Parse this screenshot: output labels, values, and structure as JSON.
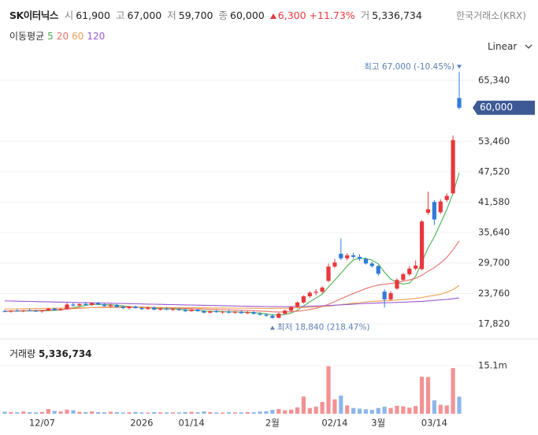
{
  "chart_data": {
    "type": "candlestick",
    "title": "SK이터닉스",
    "subtitle": "한국거래소(KRX)",
    "quote": [
      {
        "label": "시",
        "value": "61,900"
      },
      {
        "label": "고",
        "value": "67,000"
      },
      {
        "label": "저",
        "value": "59,700"
      },
      {
        "label": "종",
        "value": "60,000"
      }
    ],
    "change": {
      "amount": "6,300",
      "pct": "+11.73%"
    },
    "turnover": {
      "label": "거",
      "value": "5,336,734"
    },
    "ma_label": "이동평균",
    "scale_label": "Linear",
    "up_color": "#e8383d",
    "down_color": "#2f7bd9",
    "categories": [
      null,
      null,
      null,
      null,
      null,
      null,
      "12/07",
      null,
      null,
      null,
      null,
      null,
      null,
      null,
      null,
      null,
      null,
      null,
      null,
      null,
      null,
      null,
      "2026",
      null,
      null,
      null,
      null,
      null,
      null,
      null,
      "01/14",
      null,
      null,
      null,
      null,
      null,
      null,
      null,
      null,
      null,
      null,
      null,
      null,
      "2월",
      null,
      null,
      null,
      null,
      null,
      null,
      null,
      null,
      null,
      "02/14",
      null,
      null,
      null,
      null,
      null,
      null,
      "3월",
      null,
      null,
      null,
      null,
      null,
      null,
      null,
      null,
      "03/14",
      null,
      null,
      null,
      null
    ],
    "candles": [
      [
        20300,
        20600,
        20100,
        20200
      ],
      [
        20200,
        20500,
        20000,
        20400
      ],
      [
        20400,
        20700,
        20200,
        20300
      ],
      [
        20300,
        20500,
        20100,
        20450
      ],
      [
        20450,
        20800,
        20300,
        20350
      ],
      [
        20350,
        20600,
        20150,
        20250
      ],
      [
        20250,
        20500,
        20000,
        20400
      ],
      [
        20400,
        20900,
        20300,
        20800
      ],
      [
        20800,
        21000,
        20400,
        20500
      ],
      [
        20500,
        20900,
        20350,
        20700
      ],
      [
        20700,
        21900,
        20600,
        21600
      ],
      [
        21600,
        21900,
        21200,
        21400
      ],
      [
        21400,
        21800,
        21100,
        21700
      ],
      [
        21700,
        22100,
        21400,
        21500
      ],
      [
        21500,
        22000,
        21300,
        21900
      ],
      [
        21900,
        22100,
        21500,
        21600
      ],
      [
        21600,
        21900,
        21200,
        21300
      ],
      [
        21300,
        21700,
        21000,
        21500
      ],
      [
        21500,
        21700,
        21000,
        21100
      ],
      [
        21100,
        21400,
        20700,
        20900
      ],
      [
        20900,
        21300,
        20600,
        21200
      ],
      [
        21200,
        21400,
        20800,
        20900
      ],
      [
        20900,
        21100,
        20500,
        20700
      ],
      [
        20700,
        21200,
        20600,
        21000
      ],
      [
        21000,
        21200,
        20500,
        20600
      ],
      [
        20600,
        21000,
        20400,
        20800
      ],
      [
        20800,
        21100,
        20500,
        20600
      ],
      [
        20600,
        20900,
        20300,
        20700
      ],
      [
        20700,
        21000,
        20400,
        20500
      ],
      [
        20500,
        20800,
        20100,
        20300
      ],
      [
        20300,
        20700,
        20200,
        20600
      ],
      [
        20600,
        20800,
        20200,
        20300
      ],
      [
        20300,
        20500,
        19900,
        20000
      ],
      [
        20000,
        20400,
        19900,
        20300
      ],
      [
        20300,
        20600,
        20000,
        20100
      ],
      [
        20100,
        20400,
        19800,
        20200
      ],
      [
        20200,
        20500,
        19900,
        20000
      ],
      [
        20000,
        20300,
        19800,
        20200
      ],
      [
        20200,
        20400,
        19800,
        19900
      ],
      [
        19900,
        20300,
        19700,
        20100
      ],
      [
        20100,
        20300,
        19600,
        19800
      ],
      [
        19800,
        20100,
        19400,
        19600
      ],
      [
        19600,
        19900,
        19200,
        19400
      ],
      [
        19400,
        19700,
        18840,
        19000
      ],
      [
        19000,
        20000,
        18900,
        19800
      ],
      [
        19800,
        20600,
        19600,
        20400
      ],
      [
        20400,
        21300,
        20200,
        21100
      ],
      [
        21100,
        22200,
        20900,
        22000
      ],
      [
        22000,
        23400,
        21800,
        23200
      ],
      [
        23200,
        24200,
        22900,
        23900
      ],
      [
        23900,
        24600,
        23400,
        24100
      ],
      [
        24100,
        25200,
        23800,
        24900
      ],
      [
        26200,
        29600,
        26000,
        29000
      ],
      [
        29000,
        30500,
        28700,
        29800
      ],
      [
        31500,
        34500,
        30300,
        30600
      ],
      [
        30600,
        31600,
        30200,
        31200
      ],
      [
        31200,
        31700,
        30500,
        30900
      ],
      [
        30900,
        31400,
        30100,
        30500
      ],
      [
        30500,
        30800,
        29400,
        29600
      ],
      [
        29600,
        30000,
        28800,
        29100
      ],
      [
        29100,
        29300,
        27200,
        27600
      ],
      [
        24100,
        24600,
        21000,
        22600
      ],
      [
        22600,
        24200,
        22300,
        23800
      ],
      [
        24700,
        26700,
        24500,
        26400
      ],
      [
        26400,
        27800,
        26100,
        27500
      ],
      [
        27500,
        29100,
        27200,
        28600
      ],
      [
        28600,
        30200,
        28300,
        29200
      ],
      [
        28500,
        38100,
        28300,
        37800
      ],
      [
        39500,
        43600,
        39100,
        40200
      ],
      [
        41600,
        42000,
        37100,
        38200
      ],
      [
        39600,
        42100,
        39300,
        41700
      ],
      [
        42000,
        43300,
        41600,
        42800
      ],
      [
        43300,
        54600,
        43100,
        53700
      ],
      [
        61900,
        67000,
        59700,
        60000
      ]
    ],
    "series": [
      {
        "name": "5",
        "color": "#4cb050",
        "values": [
          20250,
          20280,
          20300,
          20320,
          20340,
          20340,
          20350,
          20400,
          20460,
          20530,
          20780,
          21000,
          21200,
          21400,
          21620,
          21620,
          21560,
          21540,
          21480,
          21320,
          21200,
          21120,
          20960,
          20940,
          20880,
          20800,
          20740,
          20740,
          20640,
          20580,
          20480,
          20480,
          20340,
          20280,
          20260,
          20180,
          20160,
          20160,
          20080,
          20080,
          20000,
          19920,
          19760,
          19580,
          19520,
          19640,
          19940,
          20460,
          21300,
          22120,
          22860,
          23620,
          25020,
          26340,
          27680,
          29100,
          30300,
          30600,
          30560,
          30260,
          29540,
          27880,
          26540,
          25900,
          25580,
          25780,
          27100,
          29900,
          32660,
          34800,
          37420,
          40140,
          43320,
          47280
        ]
      },
      {
        "name": "20",
        "color": "#e8706a",
        "values": [
          20300,
          20330,
          20360,
          20390,
          20420,
          20450,
          20480,
          20520,
          20570,
          20620,
          20700,
          20780,
          20860,
          20930,
          21000,
          21050,
          21090,
          21120,
          21140,
          21150,
          21140,
          21120,
          21100,
          21060,
          21020,
          20980,
          20940,
          20900,
          20860,
          20820,
          20780,
          20740,
          20700,
          20660,
          20620,
          20580,
          20540,
          20500,
          20460,
          20420,
          20380,
          20320,
          20250,
          20170,
          20130,
          20130,
          20180,
          20280,
          20430,
          20620,
          20830,
          21200,
          21650,
          22150,
          22700,
          23250,
          23750,
          24250,
          24700,
          25100,
          25400,
          25550,
          25700,
          25900,
          26150,
          26400,
          26700,
          27300,
          28100,
          28800,
          29700,
          30800,
          32300,
          34000
        ]
      },
      {
        "name": "60",
        "color": "#f0a050",
        "values": [
          20700,
          20720,
          20740,
          20760,
          20780,
          20800,
          20820,
          20840,
          20860,
          20880,
          20900,
          20920,
          20940,
          20960,
          20980,
          21000,
          21010,
          21020,
          21030,
          21040,
          21040,
          21040,
          21040,
          21030,
          21020,
          21010,
          21000,
          20990,
          20980,
          20970,
          20960,
          20950,
          20940,
          20930,
          20920,
          20910,
          20900,
          20890,
          20880,
          20870,
          20860,
          20850,
          20840,
          20830,
          20840,
          20860,
          20890,
          20930,
          20980,
          21040,
          21110,
          21190,
          21280,
          21420,
          21560,
          21700,
          21840,
          21970,
          22090,
          22200,
          22290,
          22340,
          22400,
          22480,
          22570,
          22670,
          22780,
          22960,
          23180,
          23380,
          23600,
          24000,
          24500,
          25300
        ]
      },
      {
        "name": "120",
        "color": "#9b59d0",
        "values": [
          22300,
          22270,
          22250,
          22220,
          22190,
          22160,
          22140,
          22110,
          22080,
          22060,
          22030,
          22000,
          21980,
          21950,
          21920,
          21900,
          21870,
          21840,
          21820,
          21790,
          21760,
          21740,
          21710,
          21680,
          21660,
          21630,
          21600,
          21580,
          21550,
          21520,
          21500,
          21470,
          21440,
          21420,
          21390,
          21360,
          21340,
          21310,
          21280,
          21260,
          21230,
          21210,
          21190,
          21170,
          21160,
          21160,
          21170,
          21190,
          21220,
          21260,
          21300,
          21340,
          21390,
          21460,
          21530,
          21600,
          21670,
          21730,
          21790,
          21850,
          21900,
          21930,
          21960,
          22000,
          22050,
          22100,
          22160,
          22220,
          22300,
          22400,
          22500,
          22600,
          22720,
          22900
        ]
      }
    ],
    "ylim": [
      15660,
      67960
    ],
    "yticks": [
      {
        "value": 17820,
        "label": "17,820"
      },
      {
        "value": 23760,
        "label": "23,760"
      },
      {
        "value": 29700,
        "label": "29,700"
      },
      {
        "value": 35640,
        "label": "35,640"
      },
      {
        "value": 41580,
        "label": "41,580"
      },
      {
        "value": 47520,
        "label": "47,520"
      },
      {
        "value": 53460,
        "label": "53,460"
      },
      {
        "value": 65340,
        "label": "65,340"
      }
    ],
    "last_price": {
      "value": 60000,
      "label": "60,000"
    },
    "annotations": {
      "high": "최고 67,000 (-10.45%)",
      "low": "최저 18,840 (218.47%)"
    },
    "grid": true,
    "volume": {
      "label": "거래량",
      "total": "5,336,734",
      "values": [
        600000,
        500000,
        450000,
        700000,
        500000,
        400000,
        550000,
        1500000,
        900000,
        700000,
        1300000,
        1100000,
        600000,
        500000,
        700000,
        500000,
        450000,
        600000,
        500000,
        400000,
        450000,
        550000,
        400000,
        350000,
        500000,
        450000,
        400000,
        380000,
        420000,
        500000,
        600000,
        450000,
        700000,
        500000,
        400000,
        380000,
        450000,
        400000,
        420000,
        500000,
        450000,
        700000,
        800000,
        1200000,
        1500000,
        1100000,
        1300000,
        2000000,
        5400000,
        1800000,
        2200000,
        3700000,
        14900000,
        4500000,
        5700000,
        2600000,
        1800000,
        1600000,
        1400000,
        1200000,
        1800000,
        2200000,
        1800000,
        2500000,
        2300000,
        1900000,
        2400000,
        11600000,
        11500000,
        4200000,
        2800000,
        2600000,
        14300000,
        5336734
      ],
      "ylim": [
        0,
        21000000
      ],
      "yticks": [
        {
          "value": 15100000,
          "label": "15.1m"
        }
      ]
    }
  }
}
